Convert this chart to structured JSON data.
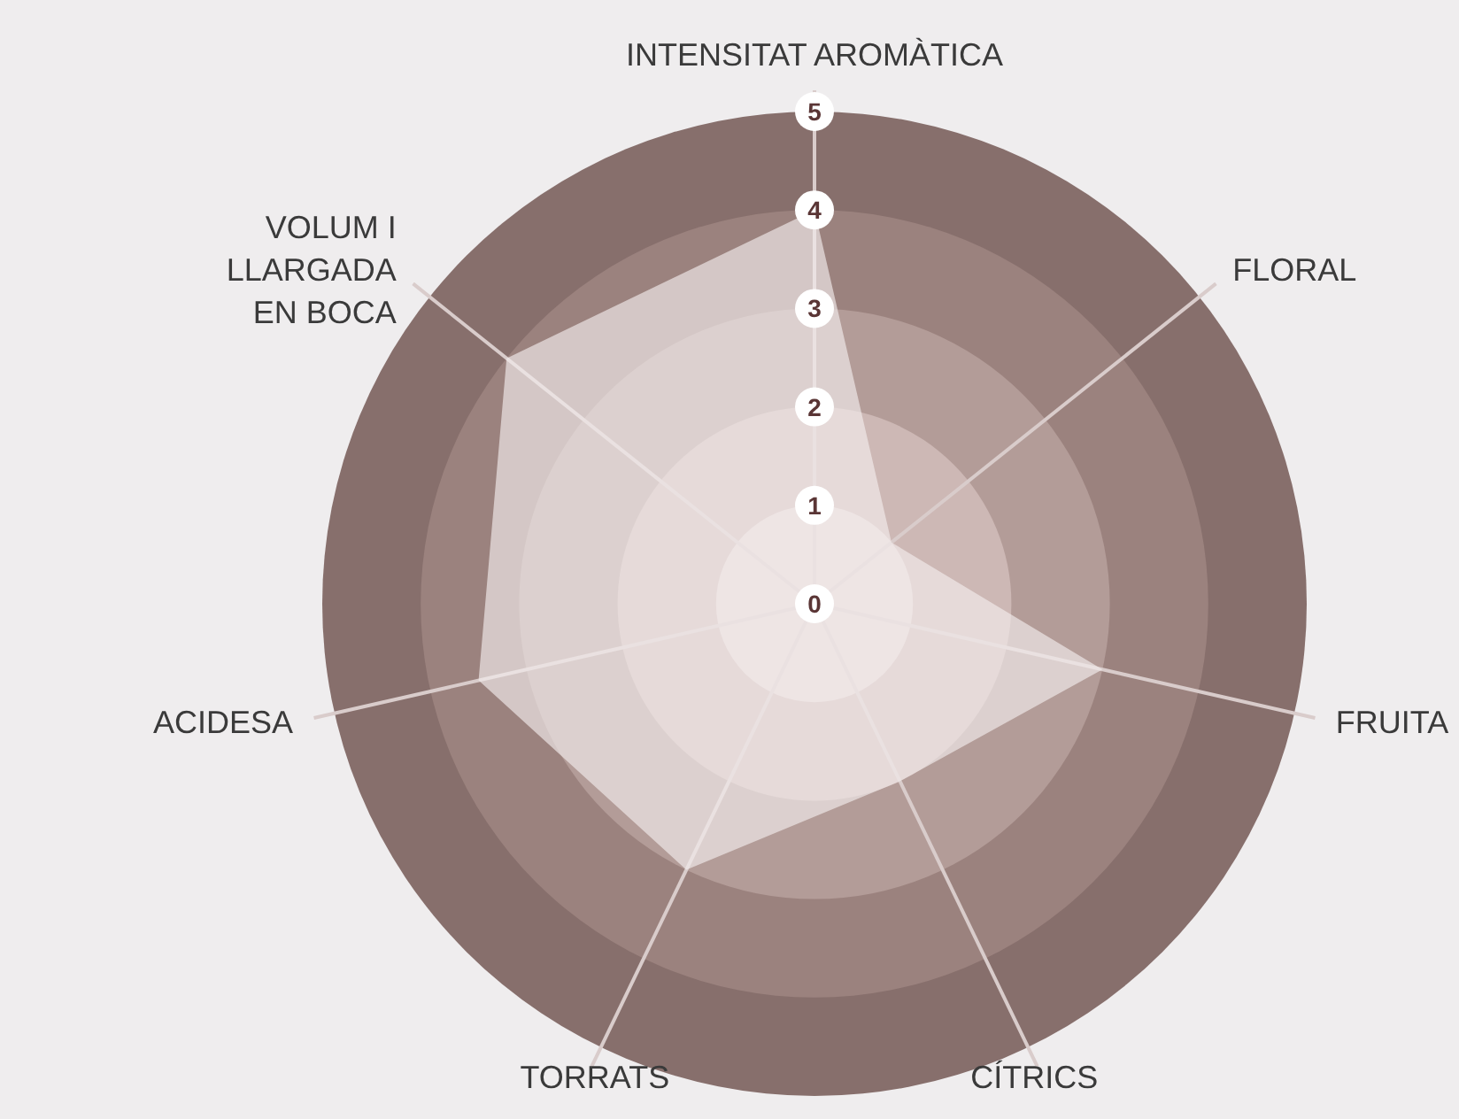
{
  "chart_data": {
    "type": "radar",
    "categories": [
      "INTENSITAT AROMÀTICA",
      "FLORAL",
      "FRUITA",
      "CÍTRICS",
      "TORRATS",
      "ACIDESA",
      "VOLUM I LLARGADA EN BOCA"
    ],
    "series": [
      {
        "color": "#f2eded",
        "values": [
          4,
          1,
          3,
          2,
          3,
          3.5,
          4
        ]
      }
    ],
    "ylim": [
      0,
      5
    ],
    "yticks": [
      0,
      1,
      2,
      3,
      4,
      5
    ]
  }
}
